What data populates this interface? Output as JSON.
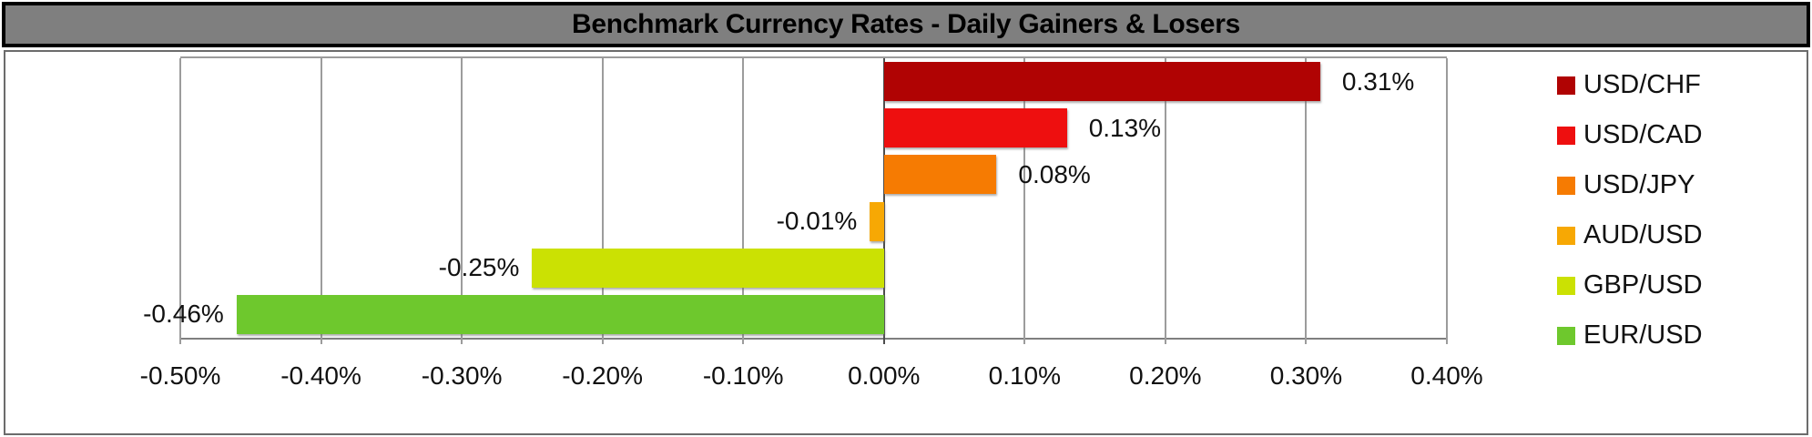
{
  "header": {
    "title": "Benchmark Currency Rates - Daily Gainers & Losers"
  },
  "chart_data": {
    "type": "bar",
    "orientation": "horizontal",
    "title": "Benchmark Currency Rates - Daily Gainers & Losers",
    "categories": [
      "USD/CHF",
      "USD/CAD",
      "USD/JPY",
      "AUD/USD",
      "GBP/USD",
      "EUR/USD"
    ],
    "values": [
      0.31,
      0.13,
      0.08,
      -0.01,
      -0.25,
      -0.46
    ],
    "value_labels": [
      "0.31%",
      "0.13%",
      "0.08%",
      "-0.01%",
      "-0.25%",
      "-0.46%"
    ],
    "series_colors": [
      "#B00303",
      "#EE0F0F",
      "#F67B02",
      "#F7A804",
      "#CBE103",
      "#6EC82D"
    ],
    "xlabel": "",
    "ylabel": "",
    "xlim": [
      -0.5,
      0.4
    ],
    "tick_step": 0.1,
    "tick_labels": [
      "-0.50%",
      "-0.40%",
      "-0.30%",
      "-0.20%",
      "-0.10%",
      "0.00%",
      "0.10%",
      "0.20%",
      "0.30%",
      "0.40%"
    ],
    "grid": true,
    "legend_position": "right"
  },
  "styles": {
    "title_bg": "#7F7F7F",
    "title_border": "#000000",
    "title_text": "#000000",
    "container_border": "#6B6B6B",
    "background": "#FFFFFF",
    "grid_color": "#9C9C9C",
    "zero_line_color": "#4D4D4D",
    "axis_line_color": "#7F7F7F",
    "label_color": "#111111"
  }
}
